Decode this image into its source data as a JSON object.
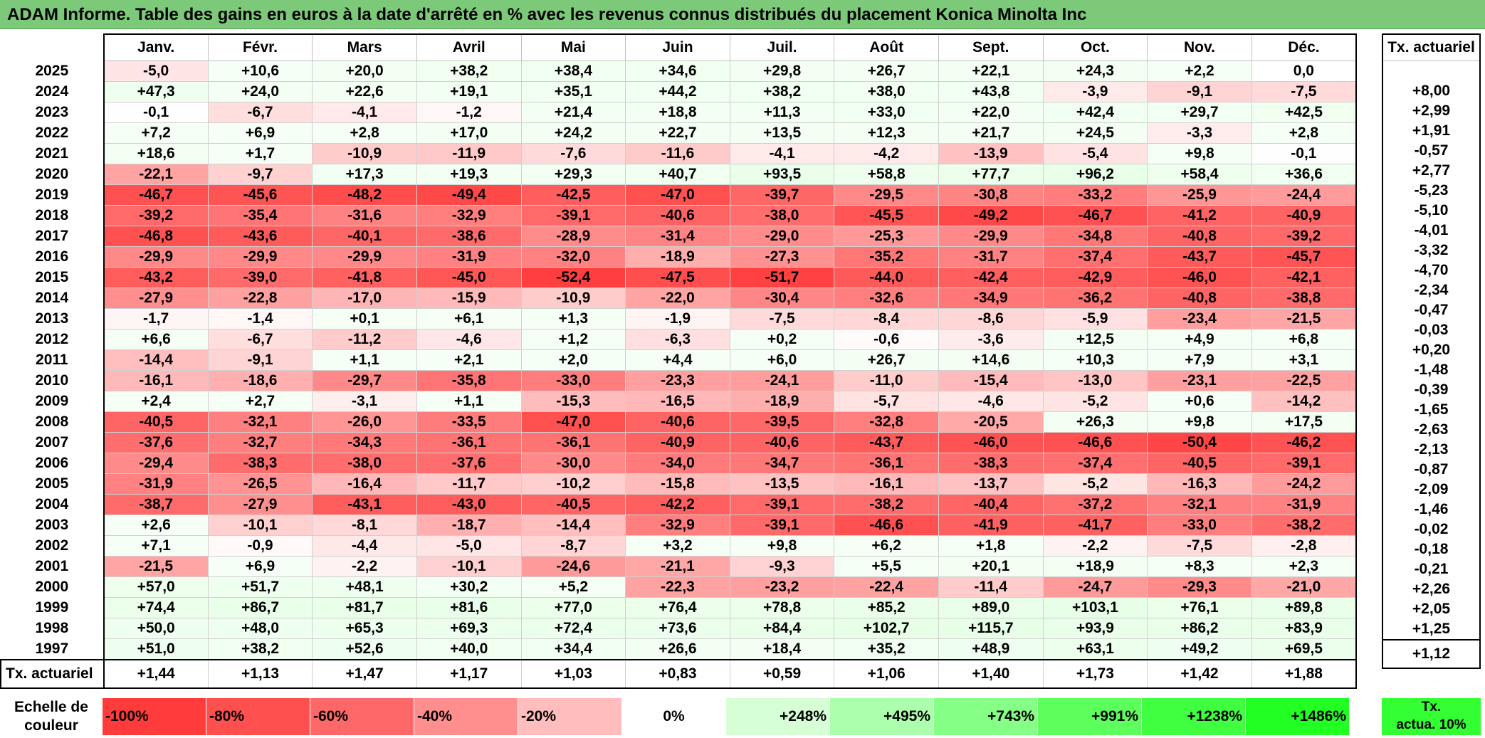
{
  "title": "ADAM Informe. Table des gains en euros à la date d'arrêté en % avec les revenus connus distribués du placement Konica Minolta Inc",
  "months": [
    "Janv.",
    "Févr.",
    "Mars",
    "Avril",
    "Mai",
    "Juin",
    "Juil.",
    "Août",
    "Sept.",
    "Oct.",
    "Nov.",
    "Déc."
  ],
  "rate_header": "Tx. actuariel",
  "rows": [
    {
      "year": "2025",
      "values": [
        "-5,0",
        "+10,6",
        "+20,0",
        "+38,2",
        "+38,4",
        "+34,6",
        "+29,8",
        "+26,7",
        "+22,1",
        "+24,3",
        "+2,2",
        "0,0"
      ],
      "rate": ""
    },
    {
      "year": "2024",
      "values": [
        "+47,3",
        "+24,0",
        "+22,6",
        "+19,1",
        "+35,1",
        "+44,2",
        "+38,2",
        "+38,0",
        "+43,8",
        "-3,9",
        "-9,1",
        "-7,5"
      ],
      "rate": "+8,00"
    },
    {
      "year": "2023",
      "values": [
        "-0,1",
        "-6,7",
        "-4,1",
        "-1,2",
        "+21,4",
        "+18,8",
        "+11,3",
        "+33,0",
        "+22,0",
        "+42,4",
        "+29,7",
        "+42,5"
      ],
      "rate": "+2,99"
    },
    {
      "year": "2022",
      "values": [
        "+7,2",
        "+6,9",
        "+2,8",
        "+17,0",
        "+24,2",
        "+22,7",
        "+13,5",
        "+12,3",
        "+21,7",
        "+24,5",
        "-3,3",
        "+2,8"
      ],
      "rate": "+1,91"
    },
    {
      "year": "2021",
      "values": [
        "+18,6",
        "+1,7",
        "-10,9",
        "-11,9",
        "-7,6",
        "-11,6",
        "-4,1",
        "-4,2",
        "-13,9",
        "-5,4",
        "+9,8",
        "-0,1"
      ],
      "rate": "-0,57"
    },
    {
      "year": "2020",
      "values": [
        "-22,1",
        "-9,7",
        "+17,3",
        "+19,3",
        "+29,3",
        "+40,7",
        "+93,5",
        "+58,8",
        "+77,7",
        "+96,2",
        "+58,4",
        "+36,6"
      ],
      "rate": "+2,77"
    },
    {
      "year": "2019",
      "values": [
        "-46,7",
        "-45,6",
        "-48,2",
        "-49,4",
        "-42,5",
        "-47,0",
        "-39,7",
        "-29,5",
        "-30,8",
        "-33,2",
        "-25,9",
        "-24,4"
      ],
      "rate": "-5,23"
    },
    {
      "year": "2018",
      "values": [
        "-39,2",
        "-35,4",
        "-31,6",
        "-32,9",
        "-39,1",
        "-40,6",
        "-38,0",
        "-45,5",
        "-49,2",
        "-46,7",
        "-41,2",
        "-40,9"
      ],
      "rate": "-5,10"
    },
    {
      "year": "2017",
      "values": [
        "-46,8",
        "-43,6",
        "-40,1",
        "-38,6",
        "-28,9",
        "-31,4",
        "-29,0",
        "-25,3",
        "-29,9",
        "-34,8",
        "-40,8",
        "-39,2"
      ],
      "rate": "-4,01"
    },
    {
      "year": "2016",
      "values": [
        "-29,9",
        "-29,9",
        "-29,9",
        "-31,9",
        "-32,0",
        "-18,9",
        "-27,3",
        "-35,2",
        "-31,7",
        "-37,4",
        "-43,7",
        "-45,7"
      ],
      "rate": "-3,32"
    },
    {
      "year": "2015",
      "values": [
        "-43,2",
        "-39,0",
        "-41,8",
        "-45,0",
        "-52,4",
        "-47,5",
        "-51,7",
        "-44,0",
        "-42,4",
        "-42,9",
        "-46,0",
        "-42,1"
      ],
      "rate": "-4,70"
    },
    {
      "year": "2014",
      "values": [
        "-27,9",
        "-22,8",
        "-17,0",
        "-15,9",
        "-10,9",
        "-22,0",
        "-30,4",
        "-32,6",
        "-34,9",
        "-36,2",
        "-40,8",
        "-38,8"
      ],
      "rate": "-2,34"
    },
    {
      "year": "2013",
      "values": [
        "-1,7",
        "-1,4",
        "+0,1",
        "+6,1",
        "+1,3",
        "-1,9",
        "-7,5",
        "-8,4",
        "-8,6",
        "-5,9",
        "-23,4",
        "-21,5"
      ],
      "rate": "-0,47"
    },
    {
      "year": "2012",
      "values": [
        "+6,6",
        "-6,7",
        "-11,2",
        "-4,6",
        "+1,2",
        "-6,3",
        "+0,2",
        "-0,6",
        "-3,6",
        "+12,5",
        "+4,9",
        "+6,8"
      ],
      "rate": "-0,03"
    },
    {
      "year": "2011",
      "values": [
        "-14,4",
        "-9,1",
        "+1,1",
        "+2,1",
        "+2,0",
        "+4,4",
        "+6,0",
        "+26,7",
        "+14,6",
        "+10,3",
        "+7,9",
        "+3,1"
      ],
      "rate": "+0,20"
    },
    {
      "year": "2010",
      "values": [
        "-16,1",
        "-18,6",
        "-29,7",
        "-35,8",
        "-33,0",
        "-23,3",
        "-24,1",
        "-11,0",
        "-15,4",
        "-13,0",
        "-23,1",
        "-22,5"
      ],
      "rate": "-1,48"
    },
    {
      "year": "2009",
      "values": [
        "+2,4",
        "+2,7",
        "-3,1",
        "+1,1",
        "-15,3",
        "-16,5",
        "-18,9",
        "-5,7",
        "-4,6",
        "-5,2",
        "+0,6",
        "-14,2"
      ],
      "rate": "-0,39"
    },
    {
      "year": "2008",
      "values": [
        "-40,5",
        "-32,1",
        "-26,0",
        "-33,5",
        "-47,0",
        "-40,6",
        "-39,5",
        "-32,8",
        "-20,5",
        "+26,3",
        "+9,8",
        "+17,5"
      ],
      "rate": "-1,65"
    },
    {
      "year": "2007",
      "values": [
        "-37,6",
        "-32,7",
        "-34,3",
        "-36,1",
        "-36,1",
        "-40,9",
        "-40,6",
        "-43,7",
        "-46,0",
        "-46,6",
        "-50,4",
        "-46,2"
      ],
      "rate": "-2,63"
    },
    {
      "year": "2006",
      "values": [
        "-29,4",
        "-38,3",
        "-38,0",
        "-37,6",
        "-30,0",
        "-34,0",
        "-34,7",
        "-36,1",
        "-38,3",
        "-37,4",
        "-40,5",
        "-39,1"
      ],
      "rate": "-2,13"
    },
    {
      "year": "2005",
      "values": [
        "-31,9",
        "-26,5",
        "-16,4",
        "-11,7",
        "-10,2",
        "-15,8",
        "-13,5",
        "-16,1",
        "-13,7",
        "-5,2",
        "-16,3",
        "-24,2"
      ],
      "rate": "-0,87"
    },
    {
      "year": "2004",
      "values": [
        "-38,7",
        "-27,9",
        "-43,1",
        "-43,0",
        "-40,5",
        "-42,2",
        "-39,1",
        "-38,2",
        "-40,4",
        "-37,2",
        "-32,1",
        "-31,9"
      ],
      "rate": "-2,09"
    },
    {
      "year": "2003",
      "values": [
        "+2,6",
        "-10,1",
        "-8,1",
        "-18,7",
        "-14,4",
        "-32,9",
        "-39,1",
        "-46,6",
        "-41,9",
        "-41,7",
        "-33,0",
        "-38,2"
      ],
      "rate": "-1,46"
    },
    {
      "year": "2002",
      "values": [
        "+7,1",
        "-0,9",
        "-4,4",
        "-5,0",
        "-8,7",
        "+3,2",
        "+9,8",
        "+6,2",
        "+1,8",
        "-2,2",
        "-7,5",
        "-2,8"
      ],
      "rate": "-0,02"
    },
    {
      "year": "2001",
      "values": [
        "-21,5",
        "+6,9",
        "-2,2",
        "-10,1",
        "-24,6",
        "-21,1",
        "-9,3",
        "+5,5",
        "+20,1",
        "+18,9",
        "+8,3",
        "+2,3"
      ],
      "rate": "-0,18"
    },
    {
      "year": "2000",
      "values": [
        "+57,0",
        "+51,7",
        "+48,1",
        "+30,2",
        "+5,2",
        "-22,3",
        "-23,2",
        "-22,4",
        "-11,4",
        "-24,7",
        "-29,3",
        "-21,0"
      ],
      "rate": "-0,21"
    },
    {
      "year": "1999",
      "values": [
        "+74,4",
        "+86,7",
        "+81,7",
        "+81,6",
        "+77,0",
        "+76,4",
        "+78,8",
        "+85,2",
        "+89,0",
        "+103,1",
        "+76,1",
        "+89,8"
      ],
      "rate": "+2,26"
    },
    {
      "year": "1998",
      "values": [
        "+50,0",
        "+48,0",
        "+65,3",
        "+69,3",
        "+72,4",
        "+73,6",
        "+84,4",
        "+102,7",
        "+115,7",
        "+93,9",
        "+86,2",
        "+83,9"
      ],
      "rate": "+2,05"
    },
    {
      "year": "1997",
      "values": [
        "+51,0",
        "+38,2",
        "+52,6",
        "+40,0",
        "+34,4",
        "+26,6",
        "+18,4",
        "+35,2",
        "+48,9",
        "+63,1",
        "+49,2",
        "+69,5"
      ],
      "rate": "+1,25"
    }
  ],
  "footer": {
    "label": "Tx. actuariel",
    "values": [
      "+1,44",
      "+1,13",
      "+1,47",
      "+1,17",
      "+1,03",
      "+0,83",
      "+0,59",
      "+1,06",
      "+1,40",
      "+1,73",
      "+1,42",
      "+1,88"
    ],
    "rate": "+1,12"
  },
  "scale": {
    "label_line1": "Echelle de",
    "label_line2": "couleur",
    "steps": [
      {
        "label": "-100%",
        "color": "#ff3b3b",
        "kind": "neg"
      },
      {
        "label": "-80%",
        "color": "#ff4f4f",
        "kind": "neg"
      },
      {
        "label": "-60%",
        "color": "#ff6868",
        "kind": "neg"
      },
      {
        "label": "-40%",
        "color": "#ff8e8e",
        "kind": "neg"
      },
      {
        "label": "-20%",
        "color": "#ffbdbd",
        "kind": "neg"
      },
      {
        "label": "0%",
        "color": "#ffffff",
        "kind": "zero"
      },
      {
        "label": "+248%",
        "color": "#d6ffd6",
        "kind": "pos"
      },
      {
        "label": "+495%",
        "color": "#acffac",
        "kind": "pos"
      },
      {
        "label": "+743%",
        "color": "#85ff85",
        "kind": "pos"
      },
      {
        "label": "+991%",
        "color": "#5cff5c",
        "kind": "pos"
      },
      {
        "label": "+1238%",
        "color": "#40ff40",
        "kind": "pos"
      },
      {
        "label": "+1486%",
        "color": "#22ff22",
        "kind": "pos"
      }
    ],
    "rate_line1": "Tx.",
    "rate_line2": "actua. 10%"
  }
}
